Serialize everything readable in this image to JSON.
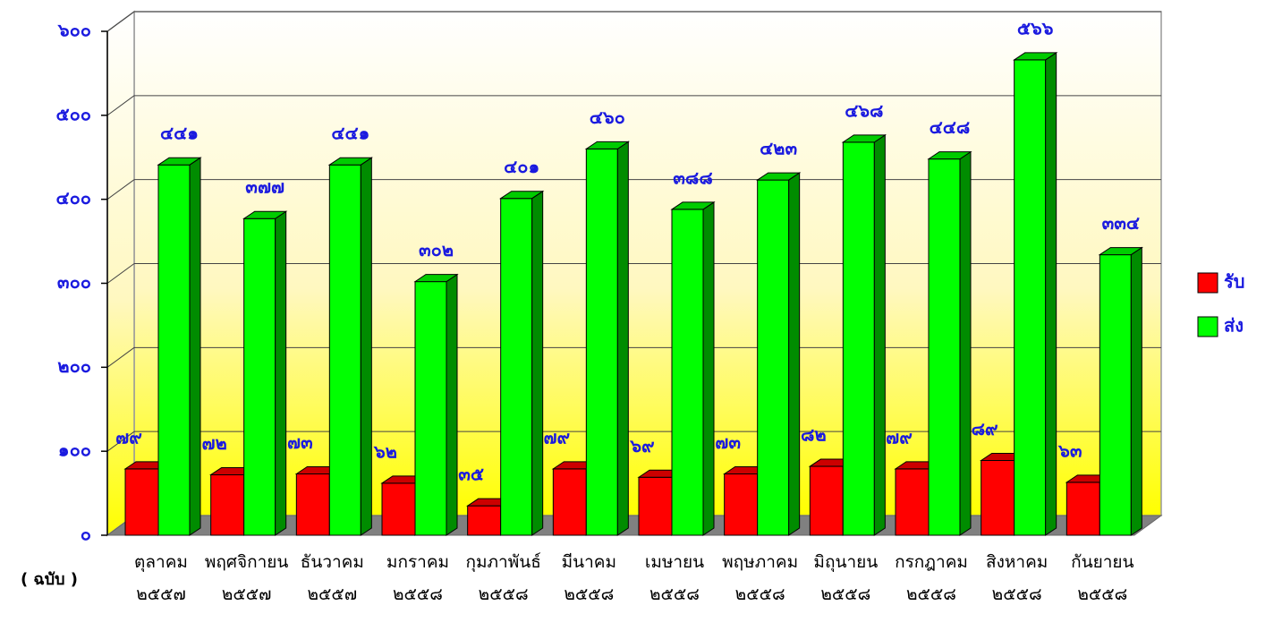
{
  "chart_data": {
    "type": "bar3d",
    "y_label": "( ฉบับ )",
    "categories": [
      "ตุลาคม\n๒๕๕๗",
      "พฤศจิกายน\n๒๕๕๗",
      "ธันวาคม\n๒๕๕๗",
      "มกราคม\n๒๕๕๘",
      "กุมภาพันธ์\n๒๕๕๘",
      "มีนาคม\n๒๕๕๘",
      "เมษายน\n๒๕๕๘",
      "พฤษภาคม\n๒๕๕๘",
      "มิถุนายน\n๒๕๕๘",
      "กรกฎาคม\n๒๕๕๘",
      "สิงหาคม\n๒๕๕๘",
      "กันยายน\n๒๕๕๘"
    ],
    "series": [
      {
        "name": "รับ",
        "color": "#ff0000",
        "values": [
          79,
          72,
          73,
          62,
          35,
          79,
          69,
          73,
          82,
          79,
          89,
          63
        ],
        "value_labels": [
          "๗๙",
          "๗๒",
          "๗๓",
          "๖๒",
          "๓๕",
          "๗๙",
          "๖๙",
          "๗๓",
          "๘๒",
          "๗๙",
          "๘๙",
          "๖๓"
        ]
      },
      {
        "name": "ส่ง",
        "color": "#00ff00",
        "values": [
          441,
          377,
          441,
          302,
          401,
          460,
          388,
          423,
          468,
          448,
          566,
          334
        ],
        "value_labels": [
          "๔๔๑",
          "๓๗๗",
          "๔๔๑",
          "๓๐๒",
          "๔๐๑",
          "๔๖๐",
          "๓๘๘",
          "๔๒๓",
          "๔๖๘",
          "๔๔๘",
          "๕๖๖",
          "๓๓๔"
        ]
      }
    ],
    "ylim": [
      0,
      600
    ],
    "yticks": [
      {
        "value": 0,
        "label": "๐"
      },
      {
        "value": 100,
        "label": "๑๐๐"
      },
      {
        "value": 200,
        "label": "๒๐๐"
      },
      {
        "value": 300,
        "label": "๓๐๐"
      },
      {
        "value": 400,
        "label": "๔๐๐"
      },
      {
        "value": 500,
        "label": "๕๐๐"
      },
      {
        "value": 600,
        "label": "๖๐๐"
      }
    ],
    "grid": true,
    "legend": "right"
  }
}
